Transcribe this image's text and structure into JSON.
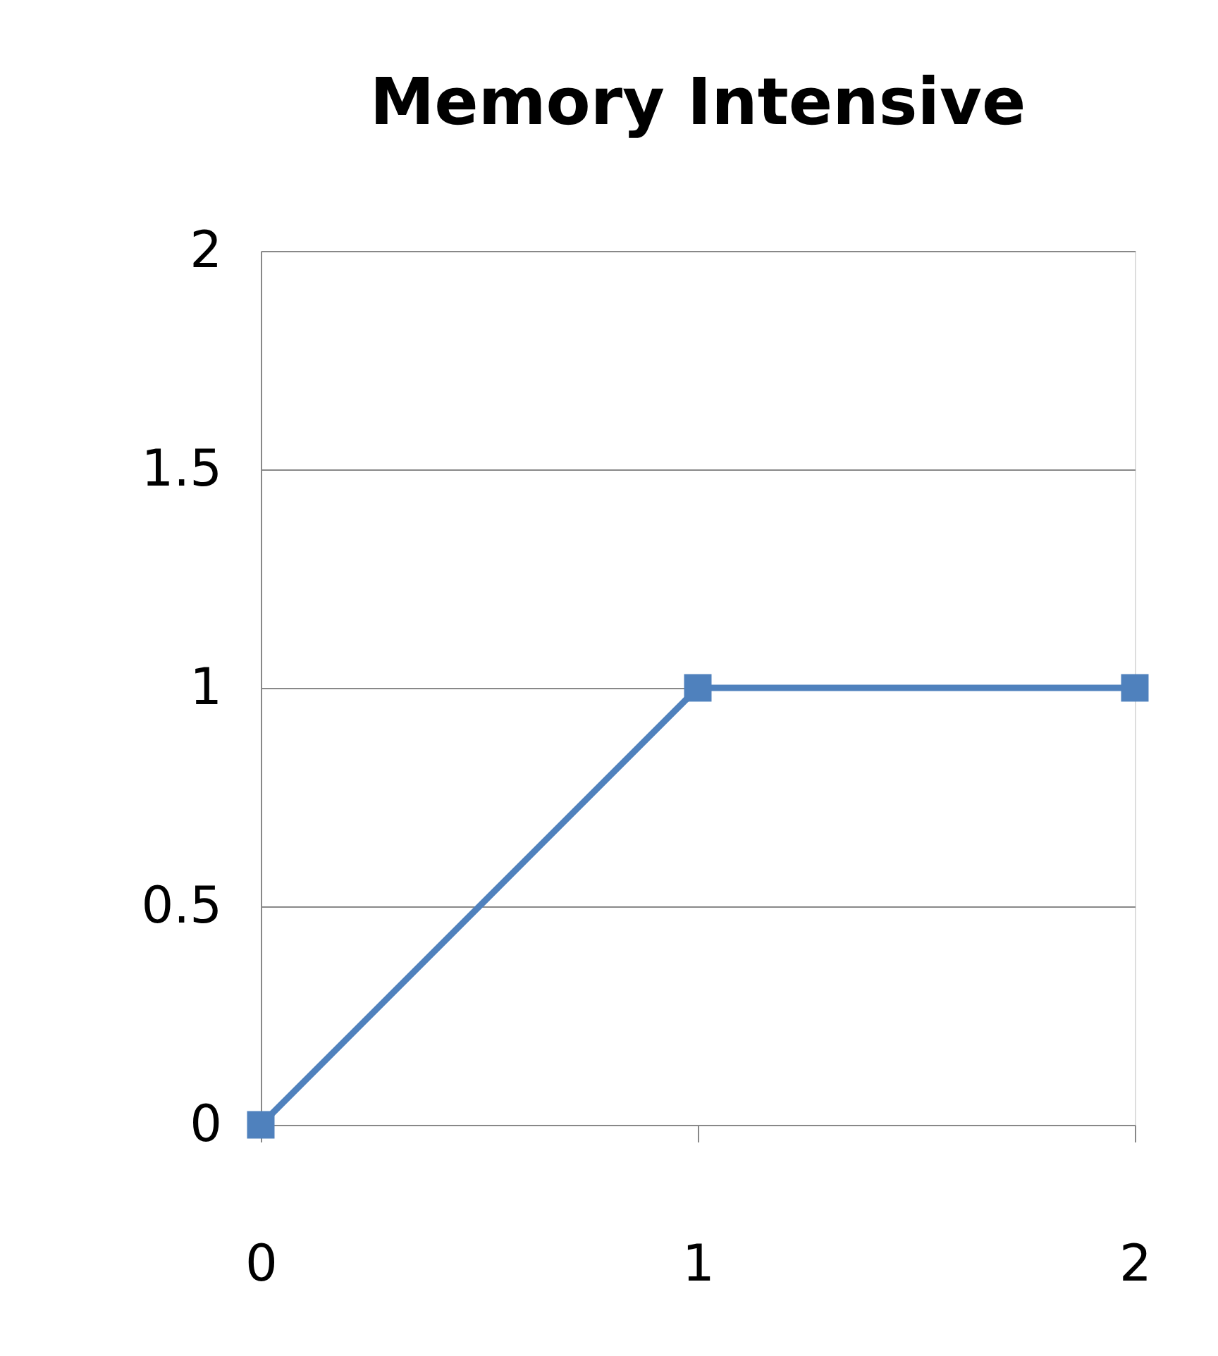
{
  "chart_data": {
    "type": "line",
    "title": "Memory Intensive",
    "x": [
      0,
      1,
      2
    ],
    "series": [
      {
        "color": "#4f81bd",
        "values": [
          0,
          1,
          1
        ]
      }
    ],
    "xlim": [
      0,
      2
    ],
    "xticks": [
      0,
      1,
      2
    ],
    "ylim": [
      0,
      2
    ],
    "yticks": [
      0,
      0.5,
      1,
      1.5,
      2
    ],
    "grid": "y",
    "marker": "square",
    "line_style": "solid",
    "legend": false
  }
}
